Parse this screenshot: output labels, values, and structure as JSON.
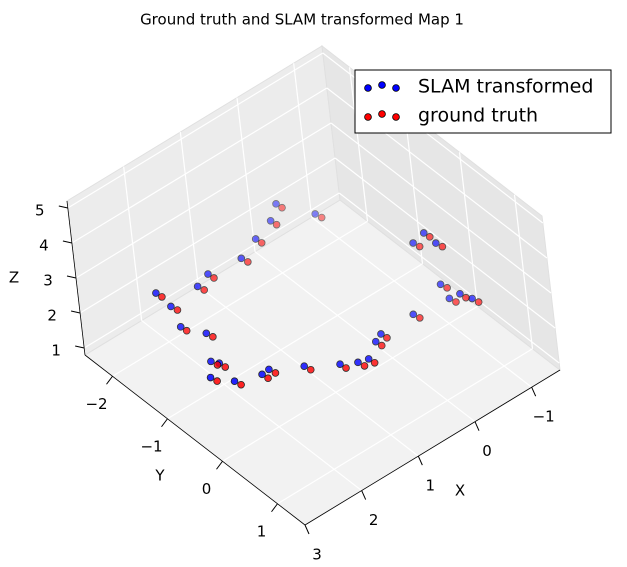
{
  "chart_data": {
    "type": "scatter3d",
    "title": "Ground truth and SLAM transformed Map 1",
    "xlabel": "X",
    "ylabel": "Y",
    "zlabel": "Z",
    "xlim": [
      -1.5,
      3
    ],
    "ylim": [
      -2.5,
      1.5
    ],
    "zlim": [
      0.8,
      5.2
    ],
    "xticks": [
      {
        "value": -1,
        "label": "−1"
      },
      0,
      1,
      2,
      3
    ],
    "yticks": [
      {
        "value": -2,
        "label": "−2"
      },
      {
        "value": -1,
        "label": "−1"
      },
      0,
      1
    ],
    "zticks": [
      1,
      2,
      3,
      4,
      5
    ],
    "grid": true,
    "legend": "upper right",
    "series": [
      {
        "name": "SLAM transformed",
        "color": "#0000ff",
        "x": [
          2.17,
          1.9,
          1.98,
          1.62,
          1.49,
          1.1,
          0.72,
          0.52,
          0.37,
          0.08,
          -0.07,
          -0.64,
          -1.2,
          -1.16,
          -1.22,
          -1.09,
          -0.96,
          -0.97,
          -0.94,
          -0.75,
          -0.29,
          -0.02,
          0.36,
          0.75,
          1.28,
          1.54,
          2.24,
          2.06,
          2.02,
          1.85,
          1.96
        ],
        "y": [
          -1.05,
          -1.17,
          -0.81,
          -0.68,
          -0.69,
          -0.45,
          -0.19,
          -0.07,
          -0.03,
          -0.2,
          -0.26,
          -0.26,
          -0.18,
          0.09,
          0.25,
          -0.19,
          -0.03,
          -0.26,
          -0.46,
          -2.12,
          -2.32,
          -2.14,
          -2.02,
          -1.88,
          -1.94,
          -1.86,
          -1.86,
          -1.81,
          -1.71,
          -1.42,
          -1.26
        ],
        "z": [
          1.1,
          1.1,
          1.1,
          1.1,
          1.1,
          1.1,
          1.1,
          1.1,
          1.1,
          1.1,
          1.1,
          1.1,
          1.1,
          1.6,
          1.6,
          1.6,
          3.1,
          3.1,
          2.6,
          1.6,
          2.1,
          2.1,
          2.1,
          2.1,
          2.1,
          2.1,
          2.6,
          2.1,
          1.6,
          1.6,
          1.1
        ]
      },
      {
        "name": "ground truth",
        "color": "#ff0000",
        "x": [
          2.11,
          1.85,
          1.92,
          1.57,
          1.43,
          1.04,
          0.67,
          0.46,
          0.32,
          0.03,
          -0.12,
          -0.7,
          -1.26,
          -1.21,
          -1.28,
          -1.15,
          -1.02,
          -1.02,
          -1.0,
          -0.81,
          -0.34,
          -0.07,
          0.31,
          0.69,
          1.23,
          1.48,
          2.19,
          2.0,
          1.97,
          1.79,
          1.9
        ],
        "y": [
          -1.0,
          -1.12,
          -0.76,
          -0.63,
          -0.64,
          -0.4,
          -0.14,
          -0.02,
          0.02,
          -0.15,
          -0.21,
          -0.21,
          -0.13,
          0.14,
          0.3,
          -0.14,
          0.02,
          -0.21,
          -0.41,
          -2.07,
          -2.27,
          -2.09,
          -1.97,
          -1.83,
          -1.89,
          -1.81,
          -1.81,
          -1.76,
          -1.66,
          -1.37,
          -1.21
        ],
        "z": [
          1,
          1,
          1,
          1,
          1,
          1,
          1,
          1,
          1,
          1,
          1,
          1,
          1,
          1.5,
          1.5,
          1.5,
          3,
          3,
          2.5,
          1.5,
          2,
          2,
          2,
          2,
          2,
          2,
          2.5,
          2,
          1.5,
          1.5,
          1
        ]
      }
    ]
  }
}
